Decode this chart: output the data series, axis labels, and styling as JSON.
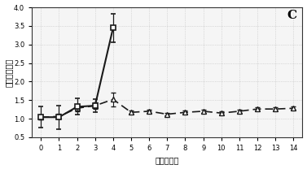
{
  "title": "C",
  "xlabel": "感染后挌奶",
  "ylabel": "平均临床得分",
  "xlim": [
    -0.5,
    14.5
  ],
  "ylim": [
    0.5,
    4.0
  ],
  "yticks": [
    0.5,
    1.0,
    1.5,
    2.0,
    2.5,
    3.0,
    3.5,
    4.0
  ],
  "ytick_labels": [
    "0.5",
    "1.0",
    "1.5",
    "2.0",
    "2.5",
    "3.0",
    "3.5",
    "4.0"
  ],
  "xticks": [
    0,
    1,
    2,
    3,
    4,
    5,
    6,
    7,
    8,
    9,
    10,
    11,
    12,
    13,
    14
  ],
  "series1": {
    "x": [
      0,
      1,
      2,
      3,
      4
    ],
    "y": [
      1.04,
      1.04,
      1.32,
      1.35,
      3.45
    ],
    "yerr": [
      0.28,
      0.32,
      0.22,
      0.18,
      0.38
    ],
    "marker": "s",
    "linestyle": "-",
    "color": "#1a1a1a",
    "markersize": 4,
    "linewidth": 1.5
  },
  "series2": {
    "x": [
      0,
      1,
      2,
      3,
      4,
      5,
      6,
      7,
      8,
      9,
      10,
      11,
      12,
      13,
      14
    ],
    "y": [
      1.04,
      1.06,
      1.28,
      1.35,
      1.52,
      1.17,
      1.2,
      1.12,
      1.17,
      1.2,
      1.15,
      1.2,
      1.26,
      1.26,
      1.28
    ],
    "yerr": [
      0.07,
      0.07,
      0.09,
      0.09,
      0.18,
      0.04,
      0.04,
      0.04,
      0.04,
      0.04,
      0.04,
      0.04,
      0.04,
      0.04,
      0.04
    ],
    "marker": "^",
    "linestyle": "--",
    "color": "#1a1a1a",
    "markersize": 4,
    "linewidth": 1.2
  },
  "background_color": "#ffffff",
  "panel_color": "#f5f5f5"
}
